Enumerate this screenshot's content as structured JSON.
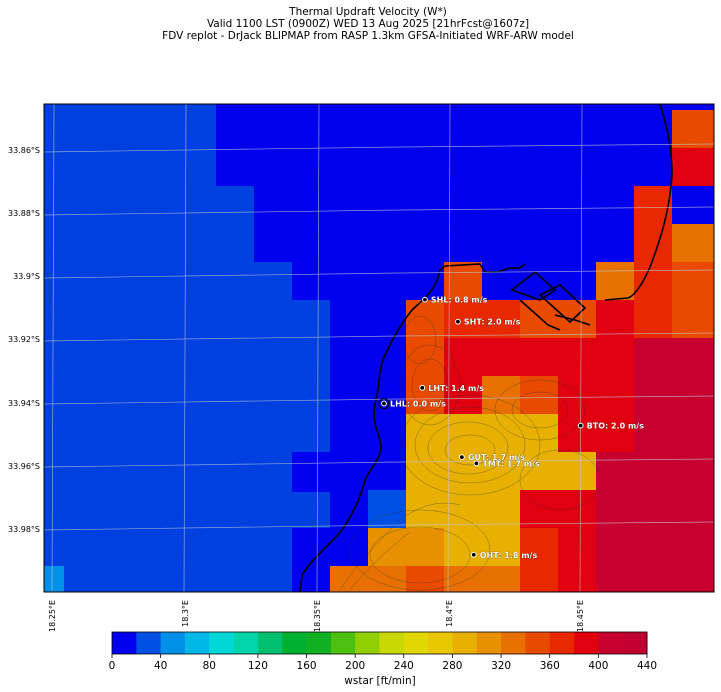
{
  "title": {
    "line1": "Thermal Updraft Velocity (W*)",
    "line2": "Valid 1100 LST (0900Z) WED 13 Aug 2025 [21hrFcst@1607z]",
    "line3": "FDV replot - DrJack BLIPMAP from RASP 1.3km GFSA-Initiated WRF-ARW model"
  },
  "lat_labels": [
    "33.86°S",
    "33.88°S",
    "33.9°S",
    "33.92°S",
    "33.94°S",
    "33.96°S",
    "33.98°S"
  ],
  "lon_labels": [
    "18.25°E",
    "18.3°E",
    "18.35°E",
    "18.4°E",
    "18.45°E"
  ],
  "stations": [
    {
      "code": "SHL",
      "label": "SHL: 0.8 m/s",
      "lon": 18.3905,
      "lat": -33.9075
    },
    {
      "code": "SHT",
      "label": "SHT: 2.0 m/s",
      "lon": 18.403,
      "lat": -33.9145
    },
    {
      "code": "LHT",
      "label": "LHT: 1.4 m/s",
      "lon": 18.3895,
      "lat": -33.9355
    },
    {
      "code": "LHL",
      "label": "LHL: 0.0 m/s",
      "lon": 18.375,
      "lat": -33.9405
    },
    {
      "code": "BTO",
      "label": "BTO: 2.0 m/s",
      "lon": 18.4495,
      "lat": -33.9475
    },
    {
      "code": "GUT",
      "label": "GUT: 1.7 m/s",
      "lon": 18.4045,
      "lat": -33.9575
    },
    {
      "code": "TMT",
      "label": "TMT: 1.7 m/s",
      "lon": 18.41,
      "lat": -33.9595
    },
    {
      "code": "OHT",
      "label": "OHT: 1.8 m/s",
      "lon": 18.409,
      "lat": -33.9885
    }
  ],
  "colorbar": {
    "label": "wstar [ft/min]",
    "ticks": [
      "0",
      "40",
      "80",
      "120",
      "160",
      "200",
      "240",
      "280",
      "320",
      "360",
      "400",
      "440"
    ],
    "colors": [
      "#0000ee",
      "#0050e6",
      "#0090e8",
      "#00b8e8",
      "#00d8d8",
      "#00d4a8",
      "#00c070",
      "#00b030",
      "#10b020",
      "#50c010",
      "#90d000",
      "#c8d800",
      "#e0d800",
      "#e8c800",
      "#e8b000",
      "#e89000",
      "#e87000",
      "#e84a00",
      "#e82800",
      "#e00010",
      "#c80030",
      "#c00030"
    ]
  },
  "grid_colors": {
    "c0": "#0000ee",
    "c1": "#0040e0",
    "c2": "#0090e8",
    "c3": "#e8b000",
    "c4": "#e89000",
    "c5": "#e87000",
    "c6": "#e84a00",
    "c7": "#e82800",
    "c8": "#e00010",
    "c9": "#c80030"
  }
}
